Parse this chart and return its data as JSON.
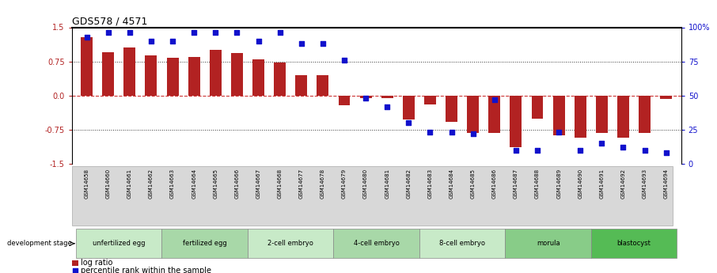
{
  "title": "GDS578 / 4571",
  "samples": [
    "GSM14658",
    "GSM14660",
    "GSM14661",
    "GSM14662",
    "GSM14663",
    "GSM14664",
    "GSM14665",
    "GSM14666",
    "GSM14667",
    "GSM14668",
    "GSM14677",
    "GSM14678",
    "GSM14679",
    "GSM14680",
    "GSM14681",
    "GSM14682",
    "GSM14683",
    "GSM14684",
    "GSM14685",
    "GSM14686",
    "GSM14687",
    "GSM14688",
    "GSM14689",
    "GSM14690",
    "GSM14691",
    "GSM14692",
    "GSM14693",
    "GSM14694"
  ],
  "log_ratio": [
    1.28,
    0.95,
    1.05,
    0.88,
    0.83,
    0.85,
    1.0,
    0.93,
    0.8,
    0.73,
    0.44,
    0.44,
    -0.22,
    -0.05,
    -0.05,
    -0.52,
    -0.2,
    -0.57,
    -0.83,
    -0.83,
    -1.13,
    -0.5,
    -0.88,
    -0.93,
    -0.83,
    -0.93,
    -0.83,
    -0.08
  ],
  "percentile": [
    93,
    96,
    96,
    90,
    90,
    96,
    96,
    96,
    90,
    96,
    88,
    88,
    76,
    48,
    42,
    30,
    23,
    23,
    22,
    47,
    10,
    10,
    23,
    10,
    15,
    12,
    10,
    8
  ],
  "bar_color": "#b22222",
  "dot_color": "#1111cc",
  "ylim_left": [
    -1.5,
    1.5
  ],
  "ylim_right": [
    0,
    100
  ],
  "yticks_left": [
    -1.5,
    -0.75,
    0.0,
    0.75,
    1.5
  ],
  "yticks_right": [
    0,
    25,
    50,
    75,
    100
  ],
  "stage_groups": [
    {
      "label": "unfertilized egg",
      "start": 0,
      "end": 3,
      "color": "#c8eac8"
    },
    {
      "label": "fertilized egg",
      "start": 4,
      "end": 7,
      "color": "#a8d8a8"
    },
    {
      "label": "2-cell embryo",
      "start": 8,
      "end": 11,
      "color": "#c8eac8"
    },
    {
      "label": "4-cell embryo",
      "start": 12,
      "end": 15,
      "color": "#a8d8a8"
    },
    {
      "label": "8-cell embryo",
      "start": 16,
      "end": 19,
      "color": "#c8eac8"
    },
    {
      "label": "morula",
      "start": 20,
      "end": 23,
      "color": "#88cc88"
    },
    {
      "label": "blastocyst",
      "start": 24,
      "end": 27,
      "color": "#55bb55"
    }
  ],
  "dev_stage_label": "development stage",
  "legend_bar": "log ratio",
  "legend_dot": "percentile rank within the sample"
}
